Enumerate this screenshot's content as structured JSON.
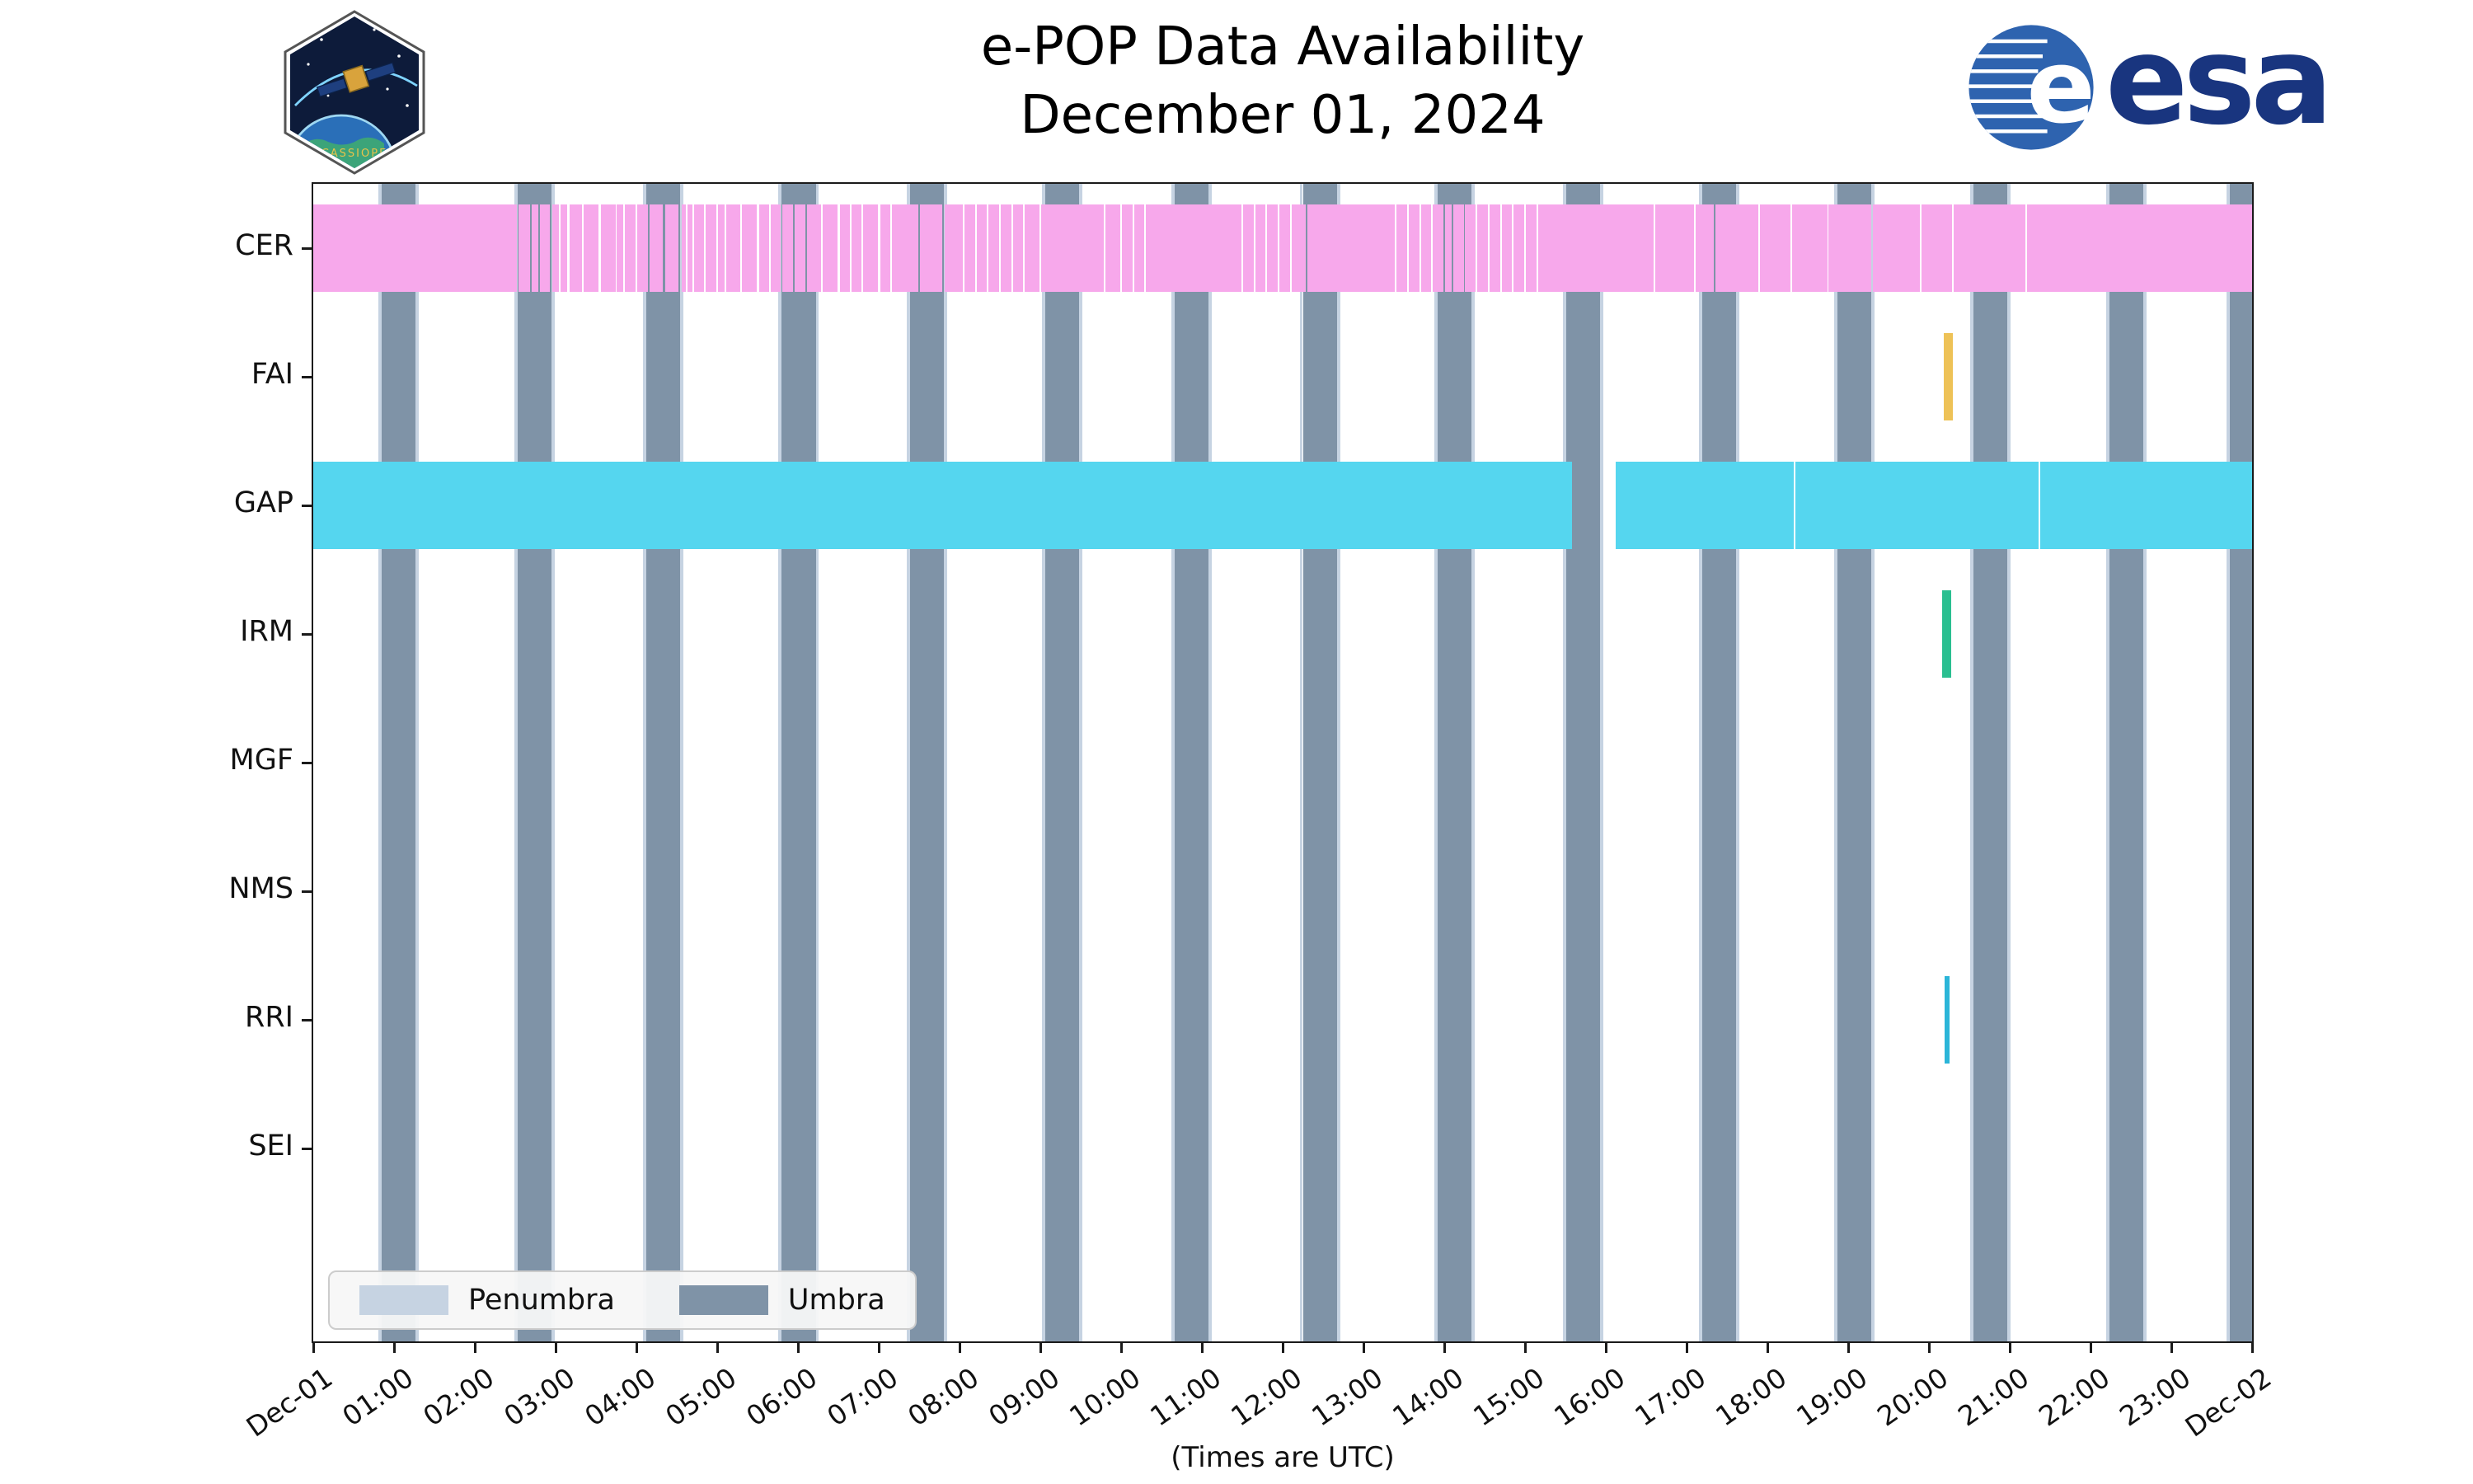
{
  "title": {
    "line1": "e-POP Data Availability",
    "line2": "December 01, 2024"
  },
  "x_axis_caption": "(Times are UTC)",
  "logos": {
    "esa_wordmark": "esa",
    "cassiope_text": "CASSIOPE"
  },
  "legend": {
    "position": "lower left",
    "items": [
      {
        "label": "Penumbra",
        "color": "#c6d3e2"
      },
      {
        "label": "Umbra",
        "color": "#7f93a7"
      }
    ]
  },
  "chart_data": {
    "type": "bar",
    "subtype": "availability-timeline-gantt",
    "title": "e-POP Data Availability",
    "subtitle": "December 01, 2024",
    "xlabel": "(Times are UTC)",
    "ylabel": "",
    "grid": false,
    "legend_entries": [
      "Penumbra",
      "Umbra"
    ],
    "x_range_hours": [
      0,
      24
    ],
    "x_tick_labels": [
      "Dec-01",
      "01:00",
      "02:00",
      "03:00",
      "04:00",
      "05:00",
      "06:00",
      "07:00",
      "08:00",
      "09:00",
      "10:00",
      "11:00",
      "12:00",
      "13:00",
      "14:00",
      "15:00",
      "16:00",
      "17:00",
      "18:00",
      "19:00",
      "20:00",
      "21:00",
      "22:00",
      "23:00",
      "Dec-02"
    ],
    "rows": [
      "CER",
      "FAI",
      "GAP",
      "IRM",
      "MGF",
      "NMS",
      "RRI",
      "SEI"
    ],
    "shading": {
      "umbra_color": "#7f93a7",
      "penumbra_color": "#c6d3e2",
      "penumbra_edge_hours": 0.04,
      "umbra_intervals_hours": [
        [
          0.85,
          1.27
        ],
        [
          2.53,
          2.95
        ],
        [
          4.12,
          4.54
        ],
        [
          5.8,
          6.22
        ],
        [
          7.39,
          7.81
        ],
        [
          9.06,
          9.48
        ],
        [
          10.66,
          11.08
        ],
        [
          12.25,
          12.67
        ],
        [
          13.92,
          14.34
        ],
        [
          15.51,
          15.93
        ],
        [
          17.19,
          17.61
        ],
        [
          18.87,
          19.29
        ],
        [
          20.55,
          20.97
        ],
        [
          22.23,
          22.65
        ],
        [
          23.72,
          24.0
        ]
      ]
    },
    "series": [
      {
        "name": "CER",
        "color": "#f7a8eb",
        "intervals": [
          [
            0,
            24
          ]
        ],
        "gaps": [
          [
            2.52,
            2.54
          ],
          [
            2.68,
            2.7
          ],
          [
            2.79,
            2.81
          ],
          [
            2.93,
            2.96
          ],
          [
            3.04,
            3.06
          ],
          [
            3.14,
            3.17
          ],
          [
            3.33,
            3.35
          ],
          [
            3.53,
            3.56
          ],
          [
            3.74,
            3.76
          ],
          [
            3.84,
            3.86
          ],
          [
            3.99,
            4.01
          ],
          [
            4.14,
            4.16
          ],
          [
            4.33,
            4.36
          ],
          [
            4.52,
            4.56
          ],
          [
            4.61,
            4.63
          ],
          [
            4.69,
            4.71
          ],
          [
            4.84,
            4.86
          ],
          [
            4.99,
            5.01
          ],
          [
            5.09,
            5.11
          ],
          [
            5.29,
            5.31
          ],
          [
            5.49,
            5.52
          ],
          [
            5.64,
            5.66
          ],
          [
            5.79,
            5.81
          ],
          [
            5.94,
            5.96
          ],
          [
            6.09,
            6.11
          ],
          [
            6.29,
            6.31
          ],
          [
            6.49,
            6.52
          ],
          [
            6.64,
            6.66
          ],
          [
            6.79,
            6.81
          ],
          [
            6.99,
            7.02
          ],
          [
            7.14,
            7.16
          ],
          [
            7.49,
            7.51
          ],
          [
            7.79,
            7.82
          ],
          [
            8.04,
            8.06
          ],
          [
            8.19,
            8.21
          ],
          [
            8.34,
            8.36
          ],
          [
            8.49,
            8.51
          ],
          [
            8.64,
            8.66
          ],
          [
            8.79,
            8.81
          ],
          [
            8.99,
            9.01
          ],
          [
            9.79,
            9.81
          ],
          [
            9.99,
            10.01
          ],
          [
            10.14,
            10.16
          ],
          [
            10.29,
            10.31
          ],
          [
            11.49,
            11.51
          ],
          [
            11.64,
            11.66
          ],
          [
            11.79,
            11.81
          ],
          [
            11.94,
            11.96
          ],
          [
            12.09,
            12.11
          ],
          [
            12.29,
            12.31
          ],
          [
            13.39,
            13.41
          ],
          [
            13.54,
            13.56
          ],
          [
            13.69,
            13.71
          ],
          [
            13.84,
            13.86
          ],
          [
            13.99,
            14.01
          ],
          [
            14.09,
            14.11
          ],
          [
            14.24,
            14.26
          ],
          [
            14.39,
            14.41
          ],
          [
            14.54,
            14.56
          ],
          [
            14.69,
            14.71
          ],
          [
            14.84,
            14.86
          ],
          [
            14.99,
            15.01
          ],
          [
            15.14,
            15.16
          ],
          [
            16.59,
            16.61
          ],
          [
            17.09,
            17.11
          ],
          [
            17.34,
            17.36
          ],
          [
            17.89,
            17.91
          ],
          [
            18.29,
            18.31
          ],
          [
            18.74,
            18.76
          ],
          [
            19.29,
            19.31
          ],
          [
            19.89,
            19.91
          ],
          [
            20.29,
            20.31
          ],
          [
            21.19,
            21.21
          ]
        ]
      },
      {
        "name": "FAI",
        "color": "#eec257",
        "intervals": [
          [
            20.18,
            20.3
          ]
        ],
        "gaps": []
      },
      {
        "name": "GAP",
        "color": "#55d6ef",
        "intervals": [
          [
            0,
            15.58
          ],
          [
            16.12,
            24
          ]
        ],
        "gaps": [
          [
            18.33,
            18.35
          ],
          [
            21.36,
            21.38
          ]
        ]
      },
      {
        "name": "IRM",
        "color": "#2abf90",
        "intervals": [
          [
            20.16,
            20.28
          ]
        ],
        "gaps": []
      },
      {
        "name": "MGF",
        "color": "#999999",
        "intervals": [],
        "gaps": []
      },
      {
        "name": "NMS",
        "color": "#999999",
        "intervals": [],
        "gaps": []
      },
      {
        "name": "RRI",
        "color": "#2bb5d8",
        "intervals": [
          [
            20.19,
            20.26
          ]
        ],
        "gaps": []
      },
      {
        "name": "SEI",
        "color": "#999999",
        "intervals": [],
        "gaps": []
      }
    ]
  }
}
